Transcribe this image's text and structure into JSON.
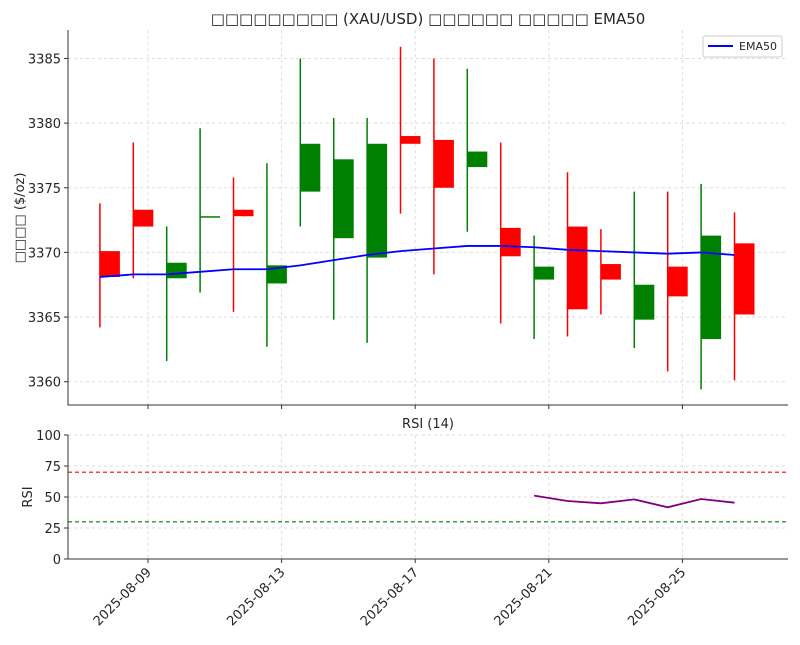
{
  "chart_data": [
    {
      "type": "candlestick",
      "title": "□□□□□□□□□ (XAU/USD) □□□□□□ □□□□□ EMA50",
      "ylabel": "□□□□ ($/oz)",
      "xlabel": "",
      "ylim": [
        3358.2,
        3387.2
      ],
      "yticks": [
        3360,
        3365,
        3370,
        3375,
        3380,
        3385
      ],
      "xticks": [
        "2025-08-09",
        "2025-08-13",
        "2025-08-17",
        "2025-08-21",
        "2025-08-25"
      ],
      "grid": true,
      "legend": {
        "position": "top-right",
        "entries": [
          "EMA50"
        ]
      },
      "colors": {
        "up": "#008000",
        "down": "#ff0000",
        "ema": "#0000ff"
      },
      "dates": [
        "2025-08-07",
        "2025-08-08",
        "2025-08-09",
        "2025-08-10",
        "2025-08-11",
        "2025-08-12",
        "2025-08-13",
        "2025-08-14",
        "2025-08-15",
        "2025-08-16",
        "2025-08-17",
        "2025-08-18",
        "2025-08-19",
        "2025-08-20",
        "2025-08-21",
        "2025-08-22",
        "2025-08-23",
        "2025-08-24",
        "2025-08-25",
        "2025-08-26"
      ],
      "open": [
        3370.1,
        3373.3,
        3368.0,
        3372.7,
        3373.3,
        3367.6,
        3374.7,
        3371.1,
        3369.6,
        3379.0,
        3378.7,
        3376.6,
        3371.9,
        3367.9,
        3372.0,
        3369.1,
        3364.8,
        3368.9,
        3363.3,
        3370.7
      ],
      "high": [
        3373.8,
        3378.5,
        3372.0,
        3379.6,
        3375.8,
        3376.9,
        3385.0,
        3380.4,
        3380.4,
        3385.9,
        3385.0,
        3384.2,
        3378.5,
        3371.3,
        3376.2,
        3371.8,
        3374.7,
        3374.7,
        3375.3,
        3373.1
      ],
      "low": [
        3364.2,
        3368.0,
        3361.6,
        3366.9,
        3365.4,
        3362.7,
        3372.0,
        3364.8,
        3363.0,
        3373.0,
        3368.3,
        3371.6,
        3364.5,
        3363.3,
        3363.5,
        3365.2,
        3362.6,
        3360.8,
        3359.4,
        3360.1
      ],
      "close": [
        3368.1,
        3372.0,
        3369.2,
        3372.8,
        3372.8,
        3369.0,
        3378.4,
        3377.2,
        3378.4,
        3378.4,
        3375.0,
        3377.8,
        3369.7,
        3368.9,
        3365.6,
        3367.9,
        3367.5,
        3366.6,
        3371.3,
        3365.2
      ],
      "series": [
        {
          "name": "EMA50",
          "values": [
            3368.1,
            3368.3,
            3368.3,
            3368.5,
            3368.7,
            3368.7,
            3369.0,
            3369.4,
            3369.8,
            3370.1,
            3370.3,
            3370.5,
            3370.5,
            3370.4,
            3370.2,
            3370.1,
            3370.0,
            3369.9,
            3370.0,
            3369.8
          ]
        }
      ]
    },
    {
      "type": "line",
      "title": "RSI (14)",
      "ylabel": "RSI",
      "ylim": [
        0,
        100
      ],
      "yticks": [
        0,
        25,
        50,
        75,
        100
      ],
      "grid": true,
      "reference_lines": [
        {
          "value": 70,
          "color": "#ff0000",
          "style": "dashed"
        },
        {
          "value": 30,
          "color": "#008000",
          "style": "dashed"
        }
      ],
      "colors": {
        "rsi": "#800080"
      },
      "dates": [
        "2025-08-20",
        "2025-08-21",
        "2025-08-22",
        "2025-08-23",
        "2025-08-24",
        "2025-08-25",
        "2025-08-26"
      ],
      "values": [
        51.1,
        46.8,
        44.9,
        48.1,
        41.7,
        48.4,
        45.4
      ]
    }
  ]
}
